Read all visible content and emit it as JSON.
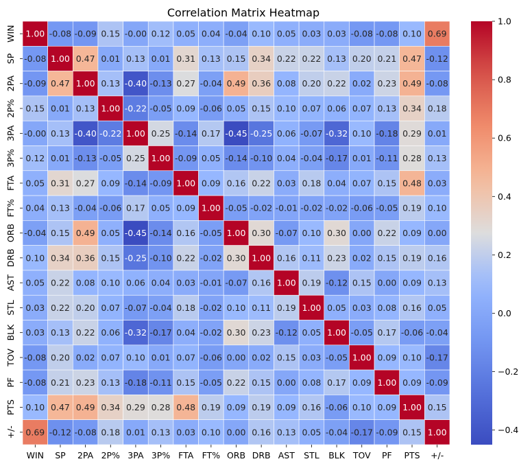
{
  "chart_data": {
    "type": "heatmap",
    "title": "Correlation Matrix Heatmap",
    "labels": [
      "WIN",
      "SP",
      "2PA",
      "2P%",
      "3PA",
      "3P%",
      "FTA",
      "FT%",
      "ORB",
      "DRB",
      "AST",
      "STL",
      "BLK",
      "TOV",
      "PF",
      "PTS",
      "+/-"
    ],
    "matrix": [
      [
        1.0,
        -0.08,
        -0.09,
        0.15,
        -0.0,
        0.12,
        0.05,
        0.04,
        -0.04,
        0.1,
        0.05,
        0.03,
        0.03,
        -0.08,
        -0.08,
        0.1,
        0.69
      ],
      [
        -0.08,
        1.0,
        0.47,
        0.01,
        0.13,
        0.01,
        0.31,
        0.13,
        0.15,
        0.34,
        0.22,
        0.22,
        0.13,
        0.2,
        0.21,
        0.47,
        -0.12
      ],
      [
        -0.09,
        0.47,
        1.0,
        0.13,
        -0.4,
        -0.13,
        0.27,
        -0.04,
        0.49,
        0.36,
        0.08,
        0.2,
        0.22,
        0.02,
        0.23,
        0.49,
        -0.08
      ],
      [
        0.15,
        0.01,
        0.13,
        1.0,
        -0.22,
        -0.05,
        0.09,
        -0.06,
        0.05,
        0.15,
        0.1,
        0.07,
        0.06,
        0.07,
        0.13,
        0.34,
        0.18
      ],
      [
        -0.0,
        0.13,
        -0.4,
        -0.22,
        1.0,
        0.25,
        -0.14,
        0.17,
        -0.45,
        -0.25,
        0.06,
        -0.07,
        -0.32,
        0.1,
        -0.18,
        0.29,
        0.01
      ],
      [
        0.12,
        0.01,
        -0.13,
        -0.05,
        0.25,
        1.0,
        -0.09,
        0.05,
        -0.14,
        -0.1,
        0.04,
        -0.04,
        -0.17,
        0.01,
        -0.11,
        0.28,
        0.13
      ],
      [
        0.05,
        0.31,
        0.27,
        0.09,
        -0.14,
        -0.09,
        1.0,
        0.09,
        0.16,
        0.22,
        0.03,
        0.18,
        0.04,
        0.07,
        0.15,
        0.48,
        0.03
      ],
      [
        0.04,
        0.13,
        -0.04,
        -0.06,
        0.17,
        0.05,
        0.09,
        1.0,
        -0.05,
        -0.02,
        -0.01,
        -0.02,
        -0.02,
        -0.06,
        -0.05,
        0.19,
        0.1
      ],
      [
        -0.04,
        0.15,
        0.49,
        0.05,
        -0.45,
        -0.14,
        0.16,
        -0.05,
        1.0,
        0.3,
        -0.07,
        0.1,
        0.3,
        0.0,
        0.22,
        0.09,
        0.0
      ],
      [
        0.1,
        0.34,
        0.36,
        0.15,
        -0.25,
        -0.1,
        0.22,
        -0.02,
        0.3,
        1.0,
        0.16,
        0.11,
        0.23,
        0.02,
        0.15,
        0.19,
        0.16
      ],
      [
        0.05,
        0.22,
        0.08,
        0.1,
        0.06,
        0.04,
        0.03,
        -0.01,
        -0.07,
        0.16,
        1.0,
        0.19,
        -0.12,
        0.15,
        0.0,
        0.09,
        0.13
      ],
      [
        0.03,
        0.22,
        0.2,
        0.07,
        -0.07,
        -0.04,
        0.18,
        -0.02,
        0.1,
        0.11,
        0.19,
        1.0,
        0.05,
        0.03,
        0.08,
        0.16,
        0.05
      ],
      [
        0.03,
        0.13,
        0.22,
        0.06,
        -0.32,
        -0.17,
        0.04,
        -0.02,
        0.3,
        0.23,
        -0.12,
        0.05,
        1.0,
        -0.05,
        0.17,
        -0.06,
        -0.04
      ],
      [
        -0.08,
        0.2,
        0.02,
        0.07,
        0.1,
        0.01,
        0.07,
        -0.06,
        0.0,
        0.02,
        0.15,
        0.03,
        -0.05,
        1.0,
        0.09,
        0.1,
        -0.17
      ],
      [
        -0.08,
        0.21,
        0.23,
        0.13,
        -0.18,
        -0.11,
        0.15,
        -0.05,
        0.22,
        0.15,
        0.0,
        0.08,
        0.17,
        0.09,
        1.0,
        0.09,
        -0.09
      ],
      [
        0.1,
        0.47,
        0.49,
        0.34,
        0.29,
        0.28,
        0.48,
        0.19,
        0.09,
        0.19,
        0.09,
        0.16,
        -0.06,
        0.1,
        0.09,
        1.0,
        0.15
      ],
      [
        0.69,
        -0.12,
        -0.08,
        0.18,
        0.01,
        0.13,
        0.03,
        0.1,
        0.0,
        0.16,
        0.13,
        0.05,
        -0.04,
        -0.17,
        -0.09,
        0.15,
        1.0
      ]
    ],
    "colormap": "coolwarm",
    "color_range": [
      -0.45,
      1.0
    ],
    "colorbar_ticks": [
      -0.4,
      -0.2,
      0.0,
      0.2,
      0.4,
      0.6,
      0.8,
      1.0
    ],
    "colorbar_labels": [
      "−0.4",
      "−0.2",
      "0.0",
      "0.2",
      "0.4",
      "0.6",
      "0.8",
      "1.0"
    ],
    "annotation_format": "2 decimals",
    "grid": false,
    "legend": "colorbar-right"
  }
}
